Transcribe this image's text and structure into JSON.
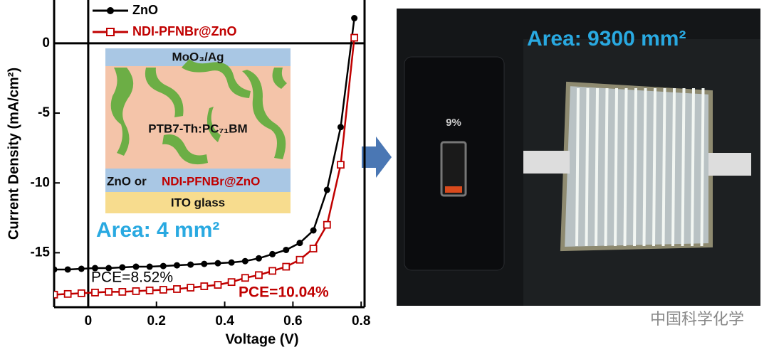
{
  "chart_data": {
    "type": "line",
    "xlabel": "Voltage (V)",
    "ylabel": "Current Density (mA/cm²)",
    "xlim": [
      -0.1,
      0.81
    ],
    "ylim": [
      -18.9,
      3.1
    ],
    "xticks": [
      0,
      0.2,
      0.4,
      0.6,
      0.8
    ],
    "yticks": [
      -15,
      -10,
      -5,
      0
    ],
    "x": [
      -0.1,
      -0.06,
      -0.02,
      0.02,
      0.06,
      0.1,
      0.14,
      0.18,
      0.22,
      0.26,
      0.3,
      0.34,
      0.38,
      0.42,
      0.46,
      0.5,
      0.54,
      0.58,
      0.62,
      0.66,
      0.7,
      0.74,
      0.78
    ],
    "series": [
      {
        "name": "ZnO",
        "color": "#000000",
        "marker": "circle",
        "values": [
          -16.2,
          -16.2,
          -16.15,
          -16.1,
          -16.1,
          -16.05,
          -16.0,
          -16.0,
          -15.95,
          -15.9,
          -15.85,
          -15.8,
          -15.75,
          -15.7,
          -15.6,
          -15.4,
          -15.1,
          -14.8,
          -14.3,
          -13.4,
          -10.5,
          -6.0,
          1.8
        ]
      },
      {
        "name": "NDI-PFNBr@ZnO",
        "color": "#c00000",
        "marker": "square",
        "values": [
          -18.0,
          -17.95,
          -17.9,
          -17.85,
          -17.8,
          -17.8,
          -17.75,
          -17.7,
          -17.65,
          -17.6,
          -17.5,
          -17.4,
          -17.3,
          -17.1,
          -16.8,
          -16.6,
          -16.3,
          -16.0,
          -15.5,
          -14.7,
          -13.0,
          -8.7,
          0.4
        ]
      }
    ],
    "annotations": {
      "pce_zno": "PCE=8.52%",
      "pce_ndi": "PCE=10.04%",
      "area_small": "Area: 4 mm²"
    },
    "inset": {
      "top_layer": "MoO₃/Ag",
      "active_layer": "PTB7-Th:PC₇₁BM",
      "etl_prefix": "ZnO or",
      "etl_highlight": "NDI-PFNBr@ZnO",
      "substrate": "ITO glass"
    }
  },
  "photo": {
    "area_large": "Area: 9300 mm²",
    "battery": "9%",
    "watermark": "中国科学化学"
  }
}
